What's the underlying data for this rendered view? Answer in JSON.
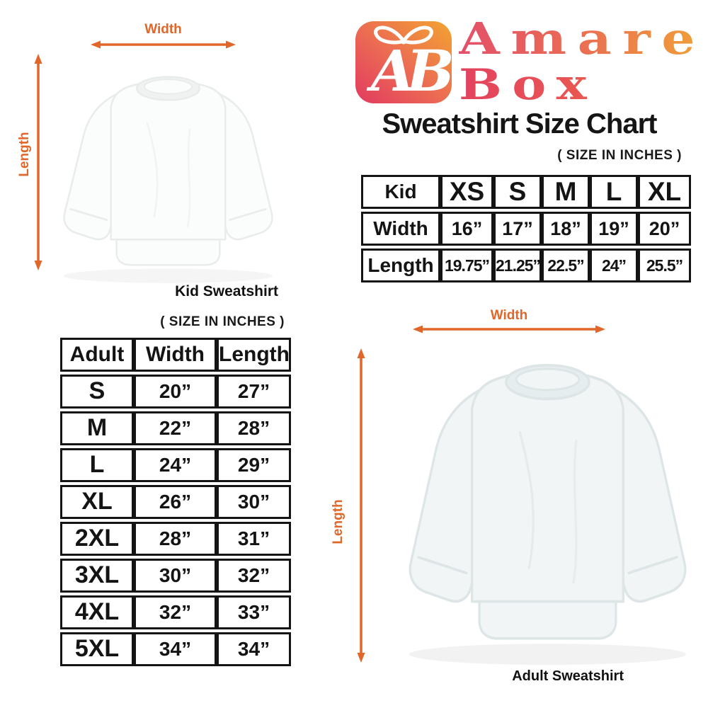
{
  "brand": {
    "name": "AmareBox",
    "line1": "Amare",
    "line2": "Box",
    "icon": "gift-box-ab-monogram"
  },
  "header": {
    "title": "Sweatshirt Size Chart",
    "size_note": "( SIZE IN INCHES )"
  },
  "kid_section": {
    "width_label": "Width",
    "length_label": "Length",
    "caption": "Kid Sweatshirt"
  },
  "adult_section": {
    "size_note": "( SIZE IN INCHES )",
    "width_label": "Width",
    "length_label": "Length",
    "caption": "Adult Sweatshirt"
  },
  "kid_table": {
    "rows": [
      [
        "Kid",
        "XS",
        "S",
        "M",
        "L",
        "XL"
      ],
      [
        "Width",
        "16”",
        "17”",
        "18”",
        "19”",
        "20”"
      ],
      [
        "Length",
        "19.75”",
        "21.25”",
        "22.5”",
        "24”",
        "25.5”"
      ]
    ]
  },
  "adult_table": {
    "rows": [
      [
        "Adult",
        "Width",
        "Length"
      ],
      [
        "S",
        "20”",
        "27”"
      ],
      [
        "M",
        "22”",
        "28”"
      ],
      [
        "L",
        "24”",
        "29”"
      ],
      [
        "XL",
        "26”",
        "30”"
      ],
      [
        "2XL",
        "28”",
        "31”"
      ],
      [
        "3XL",
        "30”",
        "32”"
      ],
      [
        "4XL",
        "32”",
        "33”"
      ],
      [
        "5XL",
        "34”",
        "34”"
      ]
    ]
  },
  "colors": {
    "accent_orange": "#E0662A",
    "logo_pink": "#E3506A",
    "logo_orange": "#F0A136",
    "table_border": "#141414"
  }
}
